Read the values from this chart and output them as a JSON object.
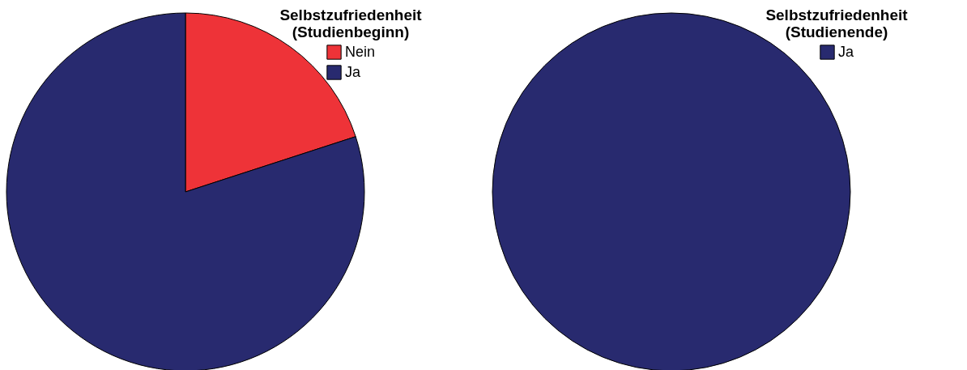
{
  "chart_data": [
    {
      "type": "pie",
      "legend_title": "Selbstzufriedenheit (Studienbeginn)",
      "categories": [
        "Nein",
        "Ja"
      ],
      "values": [
        20,
        80
      ],
      "colors": [
        "#ee3338",
        "#282a6f"
      ],
      "legend": "top right"
    },
    {
      "type": "pie",
      "legend_title": "Selbstzufriedenheit (Studienende)",
      "categories": [
        "Ja"
      ],
      "values": [
        100
      ],
      "colors": [
        "#282a6f"
      ],
      "legend": "top right"
    }
  ]
}
